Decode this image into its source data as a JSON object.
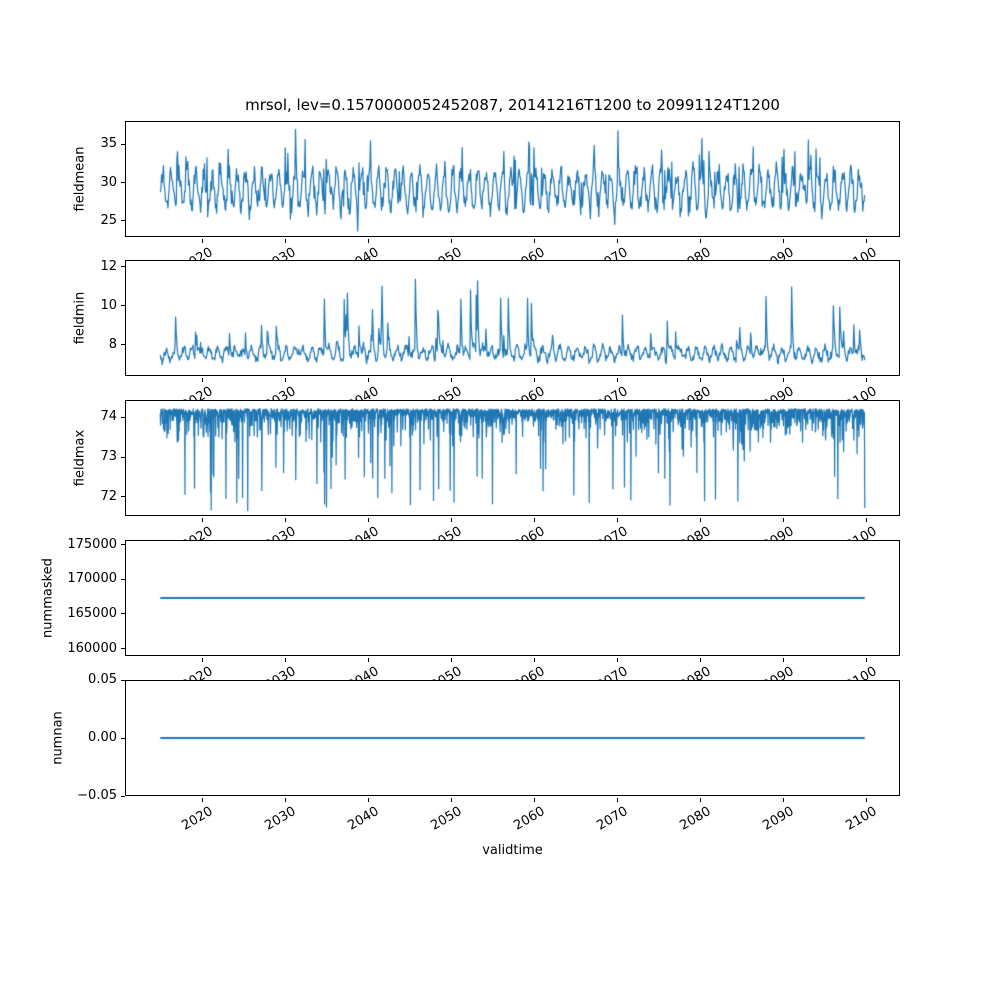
{
  "title": "mrsol, lev=0.1570000052452087, 20141216T1200 to 20991124T1200",
  "xlabel": "validtime",
  "line_color": "#1f77b4",
  "axis_color": "#000000",
  "background_color": "#ffffff",
  "chart_data": {
    "type": "line",
    "title": "mrsol, lev=0.1570000052452087, 20141216T1200 to 20991124T1200",
    "xlabel": "validtime",
    "x_start": 2014.96,
    "x_end": 2099.9,
    "xlim": [
      2010.71,
      2104.15
    ],
    "x_ticks": [
      {
        "value": 2020,
        "label": "2020"
      },
      {
        "value": 2030,
        "label": "2030"
      },
      {
        "value": 2040,
        "label": "2040"
      },
      {
        "value": 2050,
        "label": "2050"
      },
      {
        "value": 2060,
        "label": "2060"
      },
      {
        "value": 2070,
        "label": "2070"
      },
      {
        "value": 2080,
        "label": "2080"
      },
      {
        "value": 2090,
        "label": "2090"
      },
      {
        "value": 2100,
        "label": "2100"
      }
    ],
    "x_tick_rotation_deg": 30,
    "grid": false,
    "legend": "none",
    "subplots": [
      {
        "name": "fieldmean",
        "ylabel": "fieldmean",
        "ylim": [
          22.87,
          38.07
        ],
        "y_ticks": [
          {
            "value": 25,
            "label": "25"
          },
          {
            "value": 30,
            "label": "30"
          },
          {
            "value": 35,
            "label": "35"
          }
        ],
        "observed": {
          "approx_min": 23.5,
          "approx_max": 37.5,
          "approx_mean": 29.3,
          "pattern": "dense noisy annual oscillation"
        },
        "series": {
          "kind": "seasonal_noise",
          "seed": 11,
          "n": 1100,
          "base": 29.1,
          "season_amp": 2.3,
          "noise": 1.6,
          "spike_prob": 0.05,
          "spike_min": 1.5,
          "spike_range": 4.5,
          "dip_prob": 0.04,
          "dip_range": 2.2,
          "clip": [
            23.4,
            37.5
          ]
        },
        "ylabel_x": 80
      },
      {
        "name": "fieldmin",
        "ylabel": "fieldmin",
        "ylim": [
          6.4,
          12.35
        ],
        "y_ticks": [
          {
            "value": 8,
            "label": "8"
          },
          {
            "value": 10,
            "label": "10"
          },
          {
            "value": 12,
            "label": "12"
          }
        ],
        "observed": {
          "approx_min": 6.6,
          "approx_max": 12.0,
          "baseline": 7.6,
          "pattern": "low baseline with upward spikes to 10-12, strongest mid-century"
        },
        "series": {
          "kind": "spiky_baseline",
          "seed": 22,
          "n": 1100,
          "base": 7.55,
          "noise": 0.3,
          "spike_prob": 0.05,
          "spike_min": 0.5,
          "spike_range": 3.6,
          "bump_center": 2062,
          "bump_width": 16,
          "clip": [
            6.6,
            12.05
          ]
        },
        "ylabel_x": 80
      },
      {
        "name": "fieldmax",
        "ylabel": "fieldmax",
        "ylim": [
          71.51,
          74.44
        ],
        "y_ticks": [
          {
            "value": 72,
            "label": "72"
          },
          {
            "value": 73,
            "label": "73"
          },
          {
            "value": 74,
            "label": "74"
          }
        ],
        "observed": {
          "approx_min": 71.6,
          "approx_max": 74.2,
          "pattern": "dense band at ceiling ~74.2 with frequent downward spikes to 72-73"
        },
        "series": {
          "kind": "dense_ceiling",
          "seed": 33,
          "n": 2200,
          "ceiling": 74.22,
          "base_noise": 0.3,
          "mid": 0.9,
          "deep_prob": 0.07,
          "deep_min": 0.4,
          "deep_range": 1.9,
          "max_depth": 2.62
        },
        "ylabel_x": 80
      },
      {
        "name": "nummasked",
        "ylabel": "nummasked",
        "ylim": [
          158935,
          175665
        ],
        "y_ticks": [
          {
            "value": 160000,
            "label": "160000"
          },
          {
            "value": 165000,
            "label": "165000"
          },
          {
            "value": 170000,
            "label": "170000"
          },
          {
            "value": 175000,
            "label": "175000"
          }
        ],
        "observed": {
          "constant_value": 167300,
          "pattern": "flat horizontal line"
        },
        "series": {
          "kind": "constant",
          "value": 167300
        },
        "ylabel_x": 48
      },
      {
        "name": "numnan",
        "ylabel": "numnan",
        "ylim": [
          -0.05,
          0.05
        ],
        "y_ticks": [
          {
            "value": -0.05,
            "label": "−0.05"
          },
          {
            "value": 0,
            "label": "0.00"
          },
          {
            "value": 0.05,
            "label": "0.05"
          }
        ],
        "observed": {
          "constant_value": 0,
          "pattern": "flat horizontal line at zero"
        },
        "series": {
          "kind": "constant",
          "value": 0
        },
        "ylabel_x": 58
      }
    ]
  }
}
